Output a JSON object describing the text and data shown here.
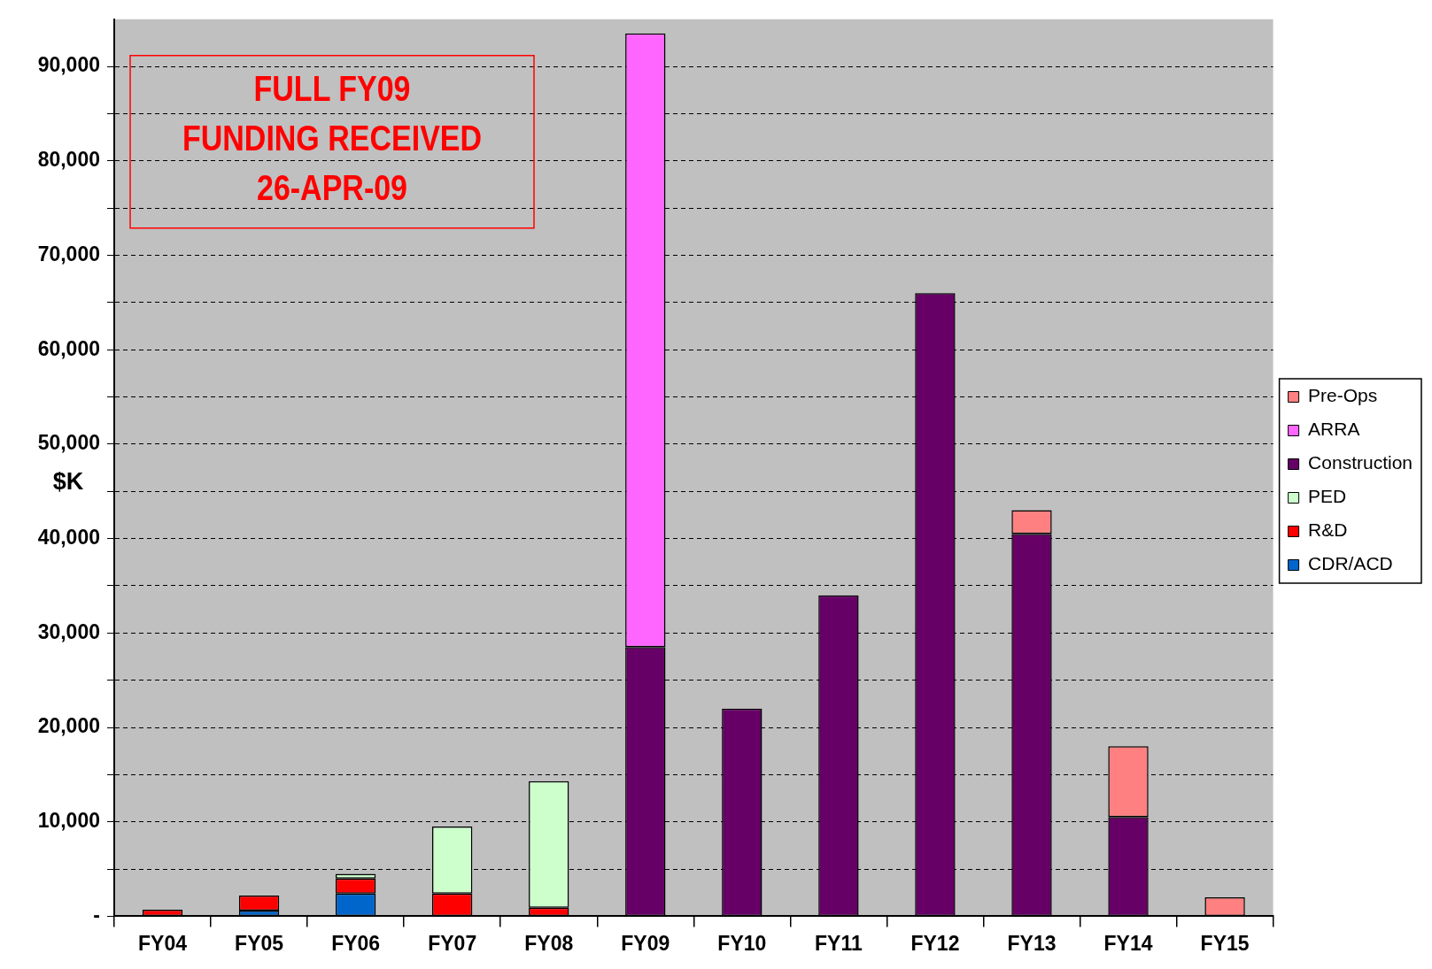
{
  "chart_data": {
    "type": "bar",
    "stacked": true,
    "ylabel": "$K",
    "legend": "right",
    "grid": "y",
    "annotations": [
      "FULL FY09\nFUNDING RECEIVED\n26-APR-09"
    ],
    "categories": [
      "FY04",
      "FY05",
      "FY06",
      "FY07",
      "FY08",
      "FY09",
      "FY10",
      "FY11",
      "FY12",
      "FY13",
      "FY14",
      "FY15"
    ],
    "ylim": [
      0,
      95000
    ],
    "yticks": [
      {
        "value": 0,
        "label": "-"
      },
      {
        "value": 5000,
        "label": null
      },
      {
        "value": 10000,
        "label": "10,000"
      },
      {
        "value": 15000,
        "label": null
      },
      {
        "value": 20000,
        "label": "20,000"
      },
      {
        "value": 25000,
        "label": null
      },
      {
        "value": 30000,
        "label": "30,000"
      },
      {
        "value": 35000,
        "label": null
      },
      {
        "value": 40000,
        "label": "40,000"
      },
      {
        "value": 45000,
        "label": null
      },
      {
        "value": 50000,
        "label": "50,000"
      },
      {
        "value": 55000,
        "label": null
      },
      {
        "value": 60000,
        "label": "60,000"
      },
      {
        "value": 65000,
        "label": null
      },
      {
        "value": 70000,
        "label": "70,000"
      },
      {
        "value": 75000,
        "label": null
      },
      {
        "value": 80000,
        "label": "80,000"
      },
      {
        "value": 85000,
        "label": null
      },
      {
        "value": 90000,
        "label": "90,000"
      }
    ],
    "series": [
      {
        "name": "CDR/ACD",
        "color": "#0066cc",
        "values": [
          null,
          600,
          2400,
          null,
          null,
          null,
          null,
          null,
          null,
          null,
          null,
          null
        ]
      },
      {
        "name": "R&D",
        "color": "#ff0000",
        "values": [
          700,
          1600,
          1600,
          2400,
          900,
          null,
          null,
          null,
          null,
          null,
          null,
          null
        ]
      },
      {
        "name": "PED",
        "color": "#ccffcc",
        "values": [
          null,
          null,
          500,
          7100,
          13400,
          null,
          null,
          null,
          null,
          null,
          null,
          null
        ]
      },
      {
        "name": "Construction",
        "color": "#660066",
        "values": [
          null,
          null,
          null,
          null,
          null,
          28500,
          22000,
          34000,
          66000,
          40500,
          10500,
          null
        ]
      },
      {
        "name": "ARRA",
        "color": "#ff66ff",
        "values": [
          null,
          null,
          null,
          null,
          null,
          65000,
          null,
          null,
          null,
          null,
          null,
          null
        ]
      },
      {
        "name": "Pre-Ops",
        "color": "#ff8080",
        "values": [
          null,
          null,
          null,
          null,
          null,
          null,
          null,
          null,
          null,
          2500,
          7500,
          2000
        ]
      }
    ]
  }
}
